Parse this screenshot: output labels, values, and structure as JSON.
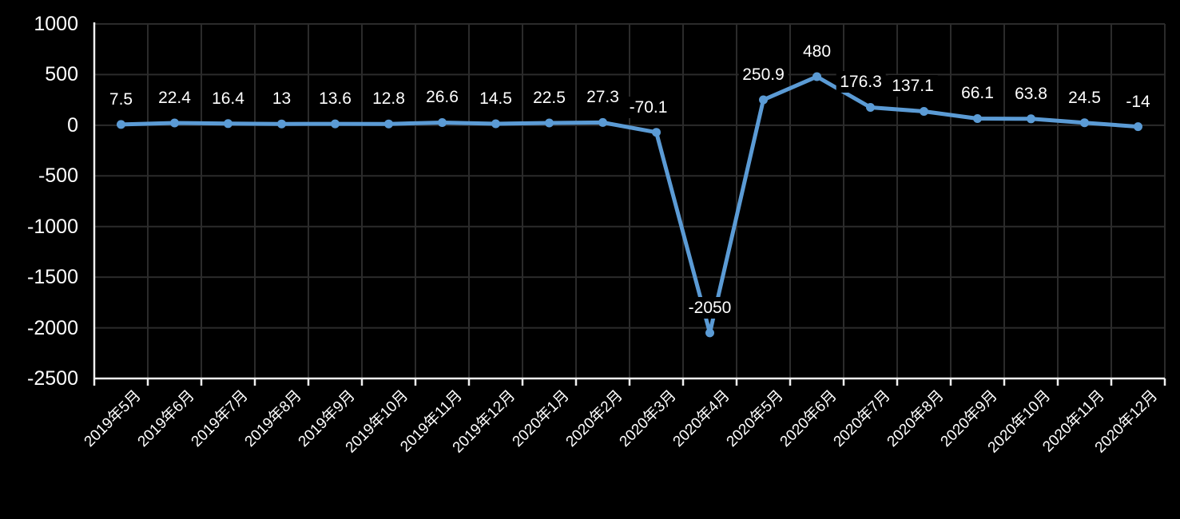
{
  "chart_data": {
    "type": "line",
    "title": "",
    "xlabel": "",
    "ylabel": "",
    "categories": [
      "2019年5月",
      "2019年6月",
      "2019年7月",
      "2019年8月",
      "2019年9月",
      "2019年10月",
      "2019年11月",
      "2019年12月",
      "2020年1月",
      "2020年2月",
      "2020年3月",
      "2020年4月",
      "2020年5月",
      "2020年6月",
      "2020年7月",
      "2020年8月",
      "2020年9月",
      "2020年10月",
      "2020年11月",
      "2020年12月"
    ],
    "series": [
      {
        "name": "series-1",
        "values": [
          7.5,
          22.4,
          16.4,
          13,
          13.6,
          12.8,
          26.6,
          14.5,
          22.5,
          27.3,
          -70.1,
          -2050,
          250.9,
          480,
          176.3,
          137.1,
          66.1,
          63.8,
          24.5,
          -14
        ],
        "data_labels": [
          "7.5",
          "22.4",
          "16.4",
          "13",
          "13.6",
          "12.8",
          "26.6",
          "14.5",
          "22.5",
          "27.3",
          "-70.1",
          "-2050",
          "250.9",
          "480",
          "176.3",
          "137.1",
          "66.1",
          "63.8",
          "24.5",
          "-14"
        ],
        "color": "#5B9BD5",
        "marker": "circle"
      }
    ],
    "ylim": [
      -2500,
      1000
    ],
    "ytick_labels": [
      "1000",
      "500",
      "0",
      "-500",
      "-1000",
      "-1500",
      "-2000",
      "-2500"
    ],
    "grid": true,
    "legend": "none",
    "colors": {
      "background": "#000000",
      "text": "#ffffff",
      "gridline": "#2b2b2b",
      "axis": "#f0f0f0",
      "line": "#5B9BD5"
    }
  }
}
